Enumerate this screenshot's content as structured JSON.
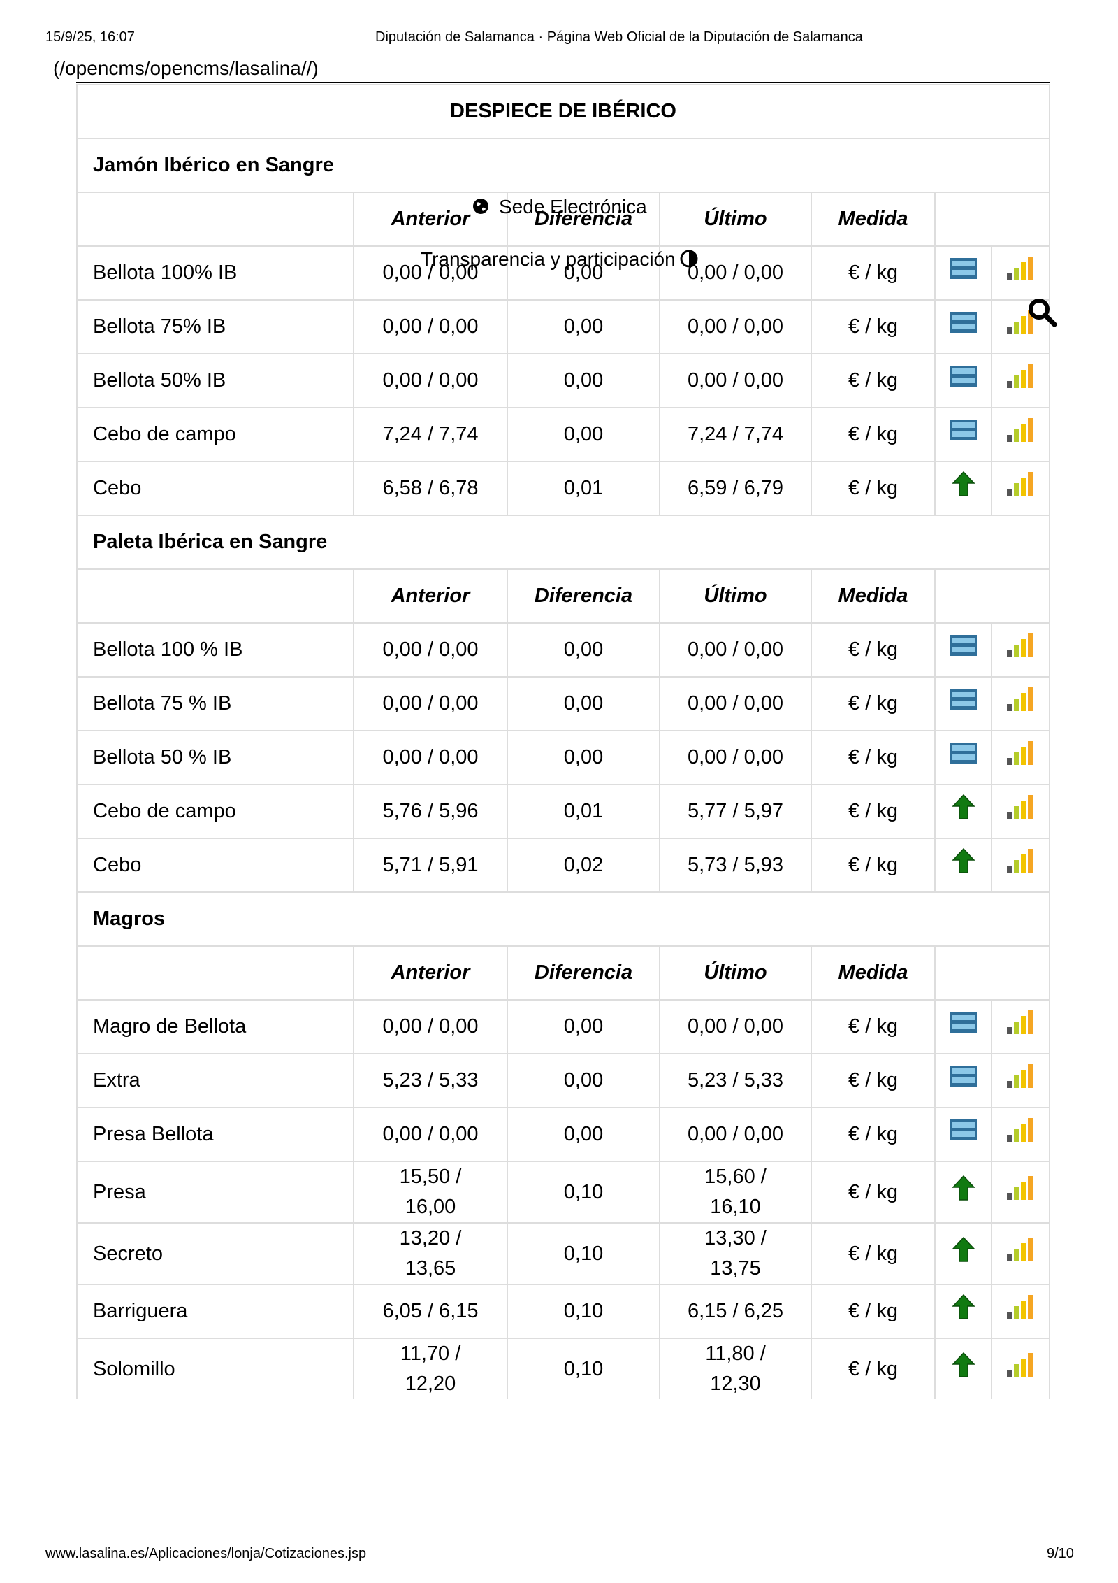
{
  "header": {
    "datetime": "15/9/25, 16:07",
    "title": "Diputación de Salamanca · Página Web Oficial de la Diputación de Salamanca"
  },
  "link": "(/opencms/opencms/lasalina//)",
  "overlay": {
    "sede": "Sede Electrónica",
    "transparencia": "Transparencia y participación"
  },
  "table": {
    "title": "DESPIECE DE IBÉRICO",
    "sections": [
      {
        "name": "Jamón Ibérico en Sangre",
        "columns": [
          "Anterior",
          "Diferencia",
          "Último",
          "Medida"
        ],
        "rows": [
          {
            "cells": [
              "Bellota 100% IB",
              "0,00 / 0,00",
              "0,00",
              "0,00 / 0,00",
              "€ / kg"
            ],
            "trend": "equal"
          },
          {
            "cells": [
              "Bellota 75% IB",
              "0,00 / 0,00",
              "0,00",
              "0,00 / 0,00",
              "€ / kg"
            ],
            "trend": "equal"
          },
          {
            "cells": [
              "Bellota 50% IB",
              "0,00 / 0,00",
              "0,00",
              "0,00 / 0,00",
              "€ / kg"
            ],
            "trend": "equal"
          },
          {
            "cells": [
              "Cebo de campo",
              "7,24 / 7,74",
              "0,00",
              "7,24 / 7,74",
              "€ / kg"
            ],
            "trend": "equal"
          },
          {
            "cells": [
              "Cebo",
              "6,58 / 6,78",
              "0,01",
              "6,59 / 6,79",
              "€ / kg"
            ],
            "trend": "up"
          }
        ]
      },
      {
        "name": "Paleta Ibérica en Sangre",
        "columns": [
          "Anterior",
          "Diferencia",
          "Último",
          "Medida"
        ],
        "rows": [
          {
            "cells": [
              "Bellota 100 % IB",
              "0,00 / 0,00",
              "0,00",
              "0,00 / 0,00",
              "€ / kg"
            ],
            "trend": "equal"
          },
          {
            "cells": [
              "Bellota 75 % IB",
              "0,00 / 0,00",
              "0,00",
              "0,00 / 0,00",
              "€ / kg"
            ],
            "trend": "equal"
          },
          {
            "cells": [
              "Bellota 50 % IB",
              "0,00 / 0,00",
              "0,00",
              "0,00 / 0,00",
              "€ / kg"
            ],
            "trend": "equal"
          },
          {
            "cells": [
              "Cebo de campo",
              "5,76 / 5,96",
              "0,01",
              "5,77 / 5,97",
              "€ / kg"
            ],
            "trend": "up"
          },
          {
            "cells": [
              "Cebo",
              "5,71 / 5,91",
              "0,02",
              "5,73 / 5,93",
              "€ / kg"
            ],
            "trend": "up"
          }
        ]
      },
      {
        "name": "Magros",
        "columns": [
          "Anterior",
          "Diferencia",
          "Último",
          "Medida"
        ],
        "rows": [
          {
            "cells": [
              "Magro de Bellota",
              "0,00 / 0,00",
              "0,00",
              "0,00 / 0,00",
              "€ / kg"
            ],
            "trend": "equal"
          },
          {
            "cells": [
              "Extra",
              "5,23 / 5,33",
              "0,00",
              "5,23 / 5,33",
              "€ / kg"
            ],
            "trend": "equal"
          },
          {
            "cells": [
              "Presa Bellota",
              "0,00 / 0,00",
              "0,00",
              "0,00 / 0,00",
              "€ / kg"
            ],
            "trend": "equal"
          },
          {
            "cells": [
              "Presa",
              "15,50 / 16,00",
              "0,10",
              "15,60 / 16,10",
              "€ / kg"
            ],
            "trend": "up"
          },
          {
            "cells": [
              "Secreto",
              "13,20 / 13,65",
              "0,10",
              "13,30 / 13,75",
              "€ / kg"
            ],
            "trend": "up"
          },
          {
            "cells": [
              "Barriguera",
              "6,05 / 6,15",
              "0,10",
              "6,15 / 6,25",
              "€ / kg"
            ],
            "trend": "up"
          },
          {
            "cells": [
              "Solomillo",
              "11,70 / 12,20",
              "0,10",
              "11,80 / 12,30",
              "€ / kg"
            ],
            "trend": "up"
          }
        ]
      }
    ]
  },
  "footer": {
    "url": "www.lasalina.es/Aplicaciones/lonja/Cotizaciones.jsp",
    "page": "9/10"
  }
}
